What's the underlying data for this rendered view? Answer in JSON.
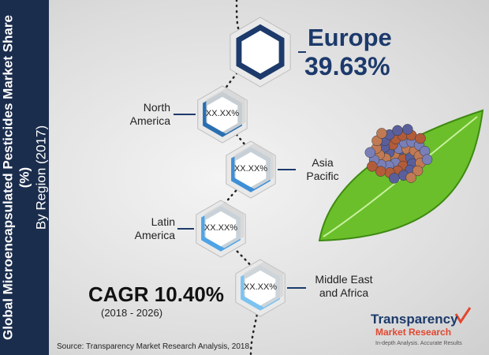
{
  "sidebar": {
    "title": "Global Microencapsulated Pesticides Market Share (%)",
    "subtitle": "By Region (2017)"
  },
  "regions": [
    {
      "name": "Europe",
      "value": "39.63%"
    },
    {
      "name": "North America",
      "value": "XX.XX%"
    },
    {
      "name": "Asia Pacific",
      "value": "XX.XX%"
    },
    {
      "name": "Latin America",
      "value": "XX.XX%"
    },
    {
      "name": "Middle East and Africa",
      "value": "XX.XX%"
    }
  ],
  "cagr": {
    "label": "CAGR 10.40%",
    "period": "(2018 - 2026)"
  },
  "source": "Source: Transparency Market Research Analysis, 2018",
  "logo": {
    "name1": "Transparency",
    "name2": "Market Research",
    "tagline": "In-depth Analysis. Accurate Results"
  }
}
